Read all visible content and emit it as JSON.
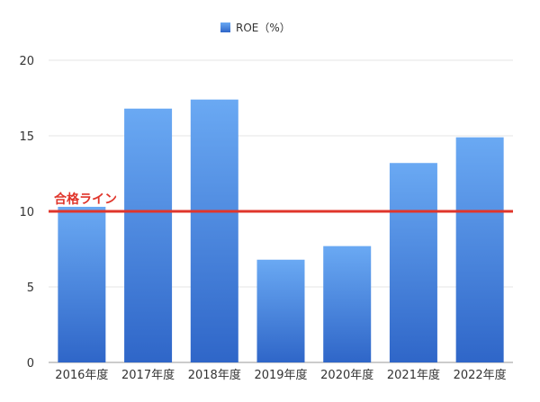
{
  "chart_data": {
    "type": "bar",
    "categories": [
      "2016年度",
      "2017年度",
      "2018年度",
      "2019年度",
      "2020年度",
      "2021年度",
      "2022年度"
    ],
    "series": [
      {
        "name": "ROE（%）",
        "values": [
          10.3,
          16.8,
          17.4,
          6.8,
          7.7,
          13.2,
          14.9
        ]
      }
    ],
    "ylim": [
      0,
      20
    ],
    "yticks": [
      0,
      5,
      10,
      15,
      20
    ],
    "grid": true,
    "legend_position": "top-center",
    "reference_line": {
      "value": 10,
      "label": "合格ライン",
      "color": "#e0352b"
    },
    "colors": {
      "bar_top": "#6aa9f3",
      "bar_bottom": "#2f66c8",
      "grid": "#e6e6e6",
      "axis": "#999999"
    }
  }
}
